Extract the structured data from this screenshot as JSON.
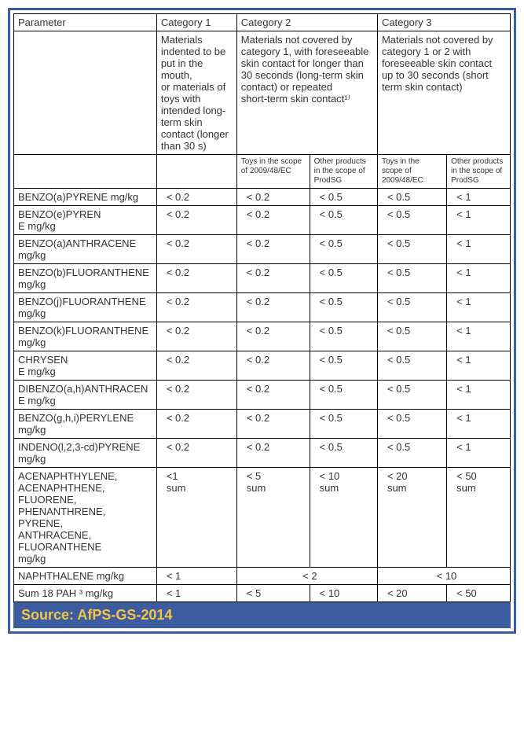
{
  "headers": {
    "parameter": "Parameter",
    "cat1": "Category 1",
    "cat2": "Category 2",
    "cat3": "Category 3",
    "cat1_desc": "Materials indented to be put in the mouth,\nor materials of toys with intended long-term skin contact (longer than 30 s)",
    "cat2_desc": "Materials not covered by category 1, with foreseeable skin contact for longer than 30 seconds (long-term skin contact) or repeated\nshort-term skin contact¹⁾",
    "cat3_desc": "Materials not covered by category 1 or 2 with foreseeable skin contact up to 30 seconds (short term skin contact)",
    "sub_toys": "Toys in the scope of 2009/48/EC",
    "sub_other": "Other products in the scope of ProdSG"
  },
  "rows": [
    {
      "param": "BENZO(a)PYRENE mg/kg",
      "v": [
        "< 0.2",
        "< 0.2",
        "< 0.5",
        "< 0.5",
        "< 1"
      ]
    },
    {
      "param": "BENZO(e)PYREN\nE mg/kg",
      "v": [
        "< 0.2",
        "< 0.2",
        "< 0.5",
        "< 0.5",
        "< 1"
      ]
    },
    {
      "param": "BENZO(a)ANTHRACENE mg/kg",
      "v": [
        "< 0.2",
        "< 0.2",
        "< 0.5",
        "< 0.5",
        "< 1"
      ]
    },
    {
      "param": "BENZO(b)FLUORANTHENE mg/kg",
      "v": [
        "< 0.2",
        "< 0.2",
        "< 0.5",
        "< 0.5",
        "< 1"
      ]
    },
    {
      "param": "BENZO(j)FLUORANTHENE mg/kg",
      "v": [
        "< 0.2",
        "< 0.2",
        "< 0.5",
        "< 0.5",
        "< 1"
      ]
    },
    {
      "param": "BENZO(k)FLUORANTHENE mg/kg",
      "v": [
        "< 0.2",
        "< 0.2",
        "< 0.5",
        "< 0.5",
        "< 1"
      ]
    },
    {
      "param": "CHRYSEN\nE mg/kg",
      "v": [
        "< 0.2",
        "< 0.2",
        "< 0.5",
        "< 0.5",
        "< 1"
      ]
    },
    {
      "param": "DIBENZO(a,h)ANTHRACEN\nE mg/kg",
      "v": [
        "< 0.2",
        "< 0.2",
        "< 0.5",
        "< 0.5",
        "< 1"
      ]
    },
    {
      "param": "BENZO(g,h,i)PERYLENE mg/kg",
      "v": [
        "< 0.2",
        "< 0.2",
        "< 0.5",
        "< 0.5",
        "< 1"
      ]
    },
    {
      "param": "INDENO(l,2,3-cd)PYRENE mg/kg",
      "v": [
        "< 0.2",
        "< 0.2",
        "< 0.5",
        "< 0.5",
        "< 1"
      ]
    }
  ],
  "sum_row": {
    "param": "ACENAPHTHYLENE,\nACENAPHTHENE,\nFLUORENE,\nPHENANTHRENE,\nPYRENE,\nANTHRACENE,\nFLUORANTHENE\nmg/kg",
    "v": [
      "<1\nsum",
      "< 5\nsum",
      "< 10\nsum",
      "< 20\nsum",
      "< 50\nsum"
    ]
  },
  "naph_row": {
    "param": "NAPHTHALENE mg/kg",
    "v1": "< 1",
    "v2": "< 2",
    "v3": "< 10"
  },
  "total_row": {
    "param": "Sum 18 PAH ³ mg/kg",
    "v": [
      "< 1",
      "< 5",
      "< 10",
      "< 20",
      "< 50"
    ]
  },
  "source": "Source: AfPS-GS-2014",
  "style": {
    "border_color": "#3b5da0",
    "source_bg": "#3b5da0",
    "source_text": "#f5c542"
  }
}
